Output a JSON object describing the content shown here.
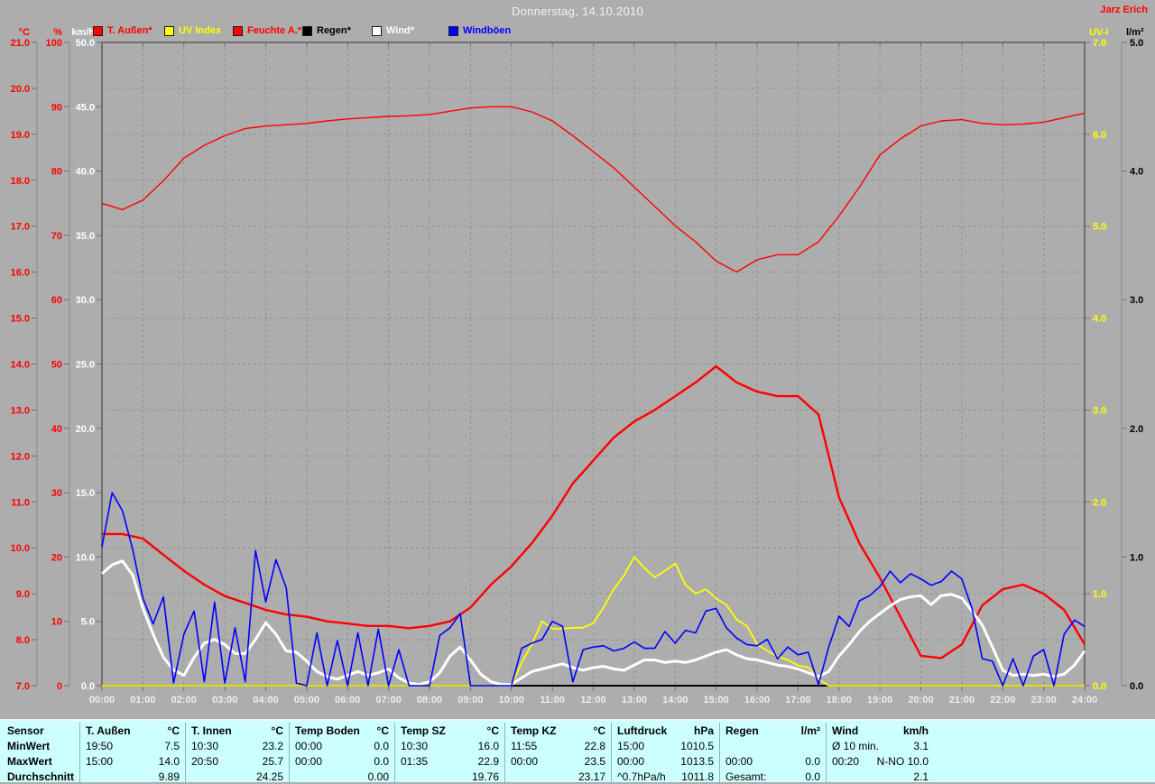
{
  "ui": {
    "page_bg": "#adadad",
    "plot_border": "#6f6f6f",
    "grid_color": "#8f8f8f",
    "table_bg": "#ccffff",
    "time_label_color": "#eeeeee",
    "title_color": "#f2f2f2"
  },
  "header": {
    "title": "Donnerstag, 14.10.2010",
    "author": "Jarz Erich"
  },
  "legend": {
    "items": [
      {
        "label": "T. Außen*",
        "color": "#ff0000"
      },
      {
        "label": "UV Index",
        "color": "#ffff00"
      },
      {
        "label": "Feuchte A.*",
        "color": "#ff0000"
      },
      {
        "label": "Regen*",
        "color": "#000000"
      },
      {
        "label": "Wind*",
        "color": "#ffffff"
      },
      {
        "label": "Windböen",
        "color": "#0000ff"
      }
    ]
  },
  "chart_data": {
    "type": "line",
    "grid": true,
    "x_axis": {
      "range_hours": [
        0,
        24
      ],
      "tick_labels": [
        "00:00",
        "01:00",
        "02:00",
        "03:00",
        "04:00",
        "05:00",
        "06:00",
        "07:00",
        "08:00",
        "09:00",
        "10:00",
        "11:00",
        "12:00",
        "13:00",
        "14:00",
        "15:00",
        "16:00",
        "17:00",
        "18:00",
        "19:00",
        "20:00",
        "21:00",
        "22:00",
        "23:00",
        "24:00"
      ]
    },
    "y_axes": [
      {
        "id": "temp",
        "unit": "°C",
        "side": "left",
        "color": "#ff0000",
        "range": [
          7,
          21
        ],
        "step": 1,
        "decimals": 1
      },
      {
        "id": "humidity",
        "unit": "%",
        "side": "left",
        "color": "#ff0000",
        "range": [
          0,
          100
        ],
        "step": 10,
        "decimals": 0
      },
      {
        "id": "wind",
        "unit": "km/h",
        "side": "left",
        "color": "#ffffff",
        "range": [
          0,
          50
        ],
        "step": 5,
        "decimals": 1
      },
      {
        "id": "uv",
        "unit": "UV-I",
        "side": "right",
        "color": "#ffff00",
        "range": [
          0,
          7
        ],
        "step": 1,
        "decimals": 1
      },
      {
        "id": "rain",
        "unit": "l/m²",
        "side": "right",
        "color": "#000000",
        "range": [
          0,
          5
        ],
        "step": 1,
        "decimals": 1
      }
    ],
    "series": [
      {
        "name": "Feuchte A.",
        "axis": "humidity",
        "color": "#ff0000",
        "width": 1.4,
        "start": 0,
        "dt": 0.5,
        "values": [
          75,
          74,
          75.5,
          78.5,
          82,
          84,
          85.5,
          86.6,
          87,
          87.2,
          87.4,
          87.8,
          88.1,
          88.3,
          88.5,
          88.6,
          88.8,
          89.3,
          89.8,
          90,
          90,
          89.2,
          87.8,
          85.5,
          83,
          80.5,
          77.5,
          74.5,
          71.5,
          69,
          66,
          64.3,
          66.2,
          67,
          67,
          69,
          73,
          77.5,
          82.5,
          85,
          87,
          87.8,
          88,
          87.4,
          87.2,
          87.3,
          87.6,
          88.3,
          89
        ]
      },
      {
        "name": "T. Außen",
        "axis": "temp",
        "color": "#ff0000",
        "width": 2.4,
        "start": 0,
        "dt": 0.5,
        "values": [
          10.3,
          10.3,
          10.2,
          9.85,
          9.5,
          9.2,
          8.95,
          8.8,
          8.65,
          8.55,
          8.5,
          8.4,
          8.35,
          8.3,
          8.3,
          8.25,
          8.3,
          8.4,
          8.7,
          9.2,
          9.6,
          10.1,
          10.7,
          11.4,
          11.9,
          12.4,
          12.75,
          13.0,
          13.3,
          13.6,
          13.95,
          13.6,
          13.4,
          13.3,
          13.3,
          12.9,
          11.1,
          10.1,
          9.35,
          8.5,
          7.65,
          7.6,
          7.9,
          8.75,
          9.1,
          9.2,
          9.0,
          8.65,
          7.9
        ]
      },
      {
        "name": "Regen",
        "axis": "rain",
        "color": "#000000",
        "width": 2,
        "start": 0,
        "dt": 24,
        "values": [
          0,
          0
        ]
      },
      {
        "name": "UV Index",
        "axis": "uv",
        "color": "#ffff00",
        "width": 1.8,
        "start": 0,
        "dt": 0.25,
        "values": [
          0,
          0,
          0,
          0,
          0,
          0,
          0,
          0,
          0,
          0,
          0,
          0,
          0,
          0,
          0,
          0,
          0,
          0,
          0,
          0,
          0,
          0,
          0,
          0,
          0,
          0,
          0,
          0,
          0,
          0,
          0,
          0,
          0,
          0,
          0,
          0,
          0,
          0,
          0,
          0,
          0,
          0.25,
          0.45,
          0.7,
          0.62,
          0.62,
          0.63,
          0.63,
          0.68,
          0.85,
          1.05,
          1.2,
          1.4,
          1.28,
          1.18,
          1.25,
          1.33,
          1.1,
          1,
          1.05,
          0.95,
          0.88,
          0.72,
          0.65,
          0.45,
          0.38,
          0.32,
          0.28,
          0.22,
          0.2,
          0.07,
          0,
          0,
          0,
          0,
          0,
          0,
          0,
          0,
          0,
          0,
          0,
          0,
          0,
          0,
          0,
          0,
          0,
          0,
          0,
          0,
          0,
          0,
          0,
          0,
          0,
          0
        ]
      },
      {
        "name": "Wind",
        "axis": "wind",
        "color": "#ffffff",
        "width": 3,
        "start": 0,
        "dt": 0.25,
        "values": [
          8.7,
          9.4,
          9.7,
          8.6,
          6,
          4,
          2.2,
          1.2,
          0.8,
          2.2,
          3.3,
          3.6,
          3.2,
          2.5,
          2.5,
          3.6,
          4.9,
          4,
          2.7,
          2.6,
          1.9,
          1.1,
          0.7,
          0.5,
          0.8,
          1.1,
          0.8,
          1,
          1.3,
          0.6,
          0.2,
          0.1,
          0.3,
          1,
          2.3,
          3,
          2,
          0.9,
          0.3,
          0.1,
          0.1,
          0.6,
          1.1,
          1.3,
          1.5,
          1.7,
          1.4,
          1.2,
          1.4,
          1.5,
          1.3,
          1.2,
          1.6,
          2,
          2,
          1.8,
          1.9,
          1.8,
          2,
          2.3,
          2.6,
          2.8,
          2.4,
          2.1,
          2,
          1.8,
          1.6,
          1.5,
          1.3,
          1,
          0.7,
          1.1,
          2.3,
          3.2,
          4.2,
          5,
          5.6,
          6.2,
          6.7,
          6.9,
          7,
          6.3,
          7,
          7.1,
          6.8,
          5.8,
          4.7,
          3,
          1.2,
          0.8,
          0.9,
          0.8,
          0.9,
          0.7,
          0.9,
          1.6,
          2.7
        ]
      },
      {
        "name": "Windböen",
        "axis": "wind",
        "color": "#0000ff",
        "width": 1.6,
        "start": 0,
        "dt": 0.25,
        "values": [
          10.8,
          15,
          13.6,
          10.6,
          6.8,
          4.8,
          6.9,
          0.2,
          4,
          5.8,
          0.3,
          6.5,
          0.2,
          4.5,
          0.3,
          10.5,
          6.5,
          9.8,
          7.6,
          0.2,
          0,
          4.1,
          0,
          3.5,
          0,
          4.1,
          0,
          4.4,
          0,
          2.8,
          0,
          0,
          0,
          3.9,
          4.5,
          5.6,
          0,
          0,
          0,
          0,
          0,
          2.9,
          3.3,
          3.6,
          5,
          4.6,
          0.3,
          2.8,
          3,
          3.1,
          2.7,
          2.9,
          3.4,
          2.9,
          2.9,
          4.2,
          3.3,
          4.3,
          4.1,
          5.8,
          6,
          4.5,
          3.7,
          3.2,
          3.1,
          3.6,
          2.1,
          3,
          2.4,
          2.6,
          0.1,
          3,
          5.4,
          4.6,
          6.6,
          7,
          7.7,
          8.9,
          8,
          8.7,
          8.3,
          7.8,
          8.1,
          8.9,
          8.3,
          6,
          2.1,
          1.9,
          0,
          2.1,
          0,
          2.3,
          2.8,
          0,
          4,
          5.1,
          4.6
        ]
      }
    ]
  },
  "table": {
    "corner_label": "Sensor",
    "row_labels": [
      "MinWert",
      "MaxWert",
      "Durchschnitt"
    ],
    "columns": [
      {
        "name": "T. Außen",
        "unit": "°C",
        "min": [
          "19:50",
          "7.5"
        ],
        "max": [
          "15:00",
          "14.0"
        ],
        "avg": [
          "",
          "9.89"
        ]
      },
      {
        "name": "T. Innen",
        "unit": "°C",
        "min": [
          "10:30",
          "23.2"
        ],
        "max": [
          "20:50",
          "25.7"
        ],
        "avg": [
          "",
          "24.25"
        ]
      },
      {
        "name": "Temp Boden",
        "unit": "°C",
        "min": [
          "00:00",
          "0.0"
        ],
        "max": [
          "00:00",
          "0.0"
        ],
        "avg": [
          "",
          "0.00"
        ]
      },
      {
        "name": "Temp SZ",
        "unit": "°C",
        "min": [
          "10:30",
          "16.0"
        ],
        "max": [
          "01:35",
          "22.9"
        ],
        "avg": [
          "",
          "19.76"
        ]
      },
      {
        "name": "Temp KZ",
        "unit": "°C",
        "min": [
          "11:55",
          "22.8"
        ],
        "max": [
          "00:00",
          "23.5"
        ],
        "avg": [
          "",
          "23.17"
        ]
      },
      {
        "name": "Luftdruck",
        "unit": "hPa",
        "min": [
          "15:00",
          "1010.5"
        ],
        "max": [
          "00:00",
          "1013.5"
        ],
        "avg": [
          "^0.7hPa/h",
          "1011.8"
        ]
      },
      {
        "name": "Regen",
        "unit": "l/m²",
        "min": [
          "",
          ""
        ],
        "max": [
          "00:00",
          "0.0"
        ],
        "avg": [
          "Gesamt:",
          "0.0"
        ]
      },
      {
        "name": "Wind",
        "unit": "km/h",
        "min": [
          "Ø 10 min.",
          "3.1"
        ],
        "max": [
          "00:20",
          "N-NO 10.0"
        ],
        "avg": [
          "",
          "2.1"
        ]
      }
    ]
  }
}
